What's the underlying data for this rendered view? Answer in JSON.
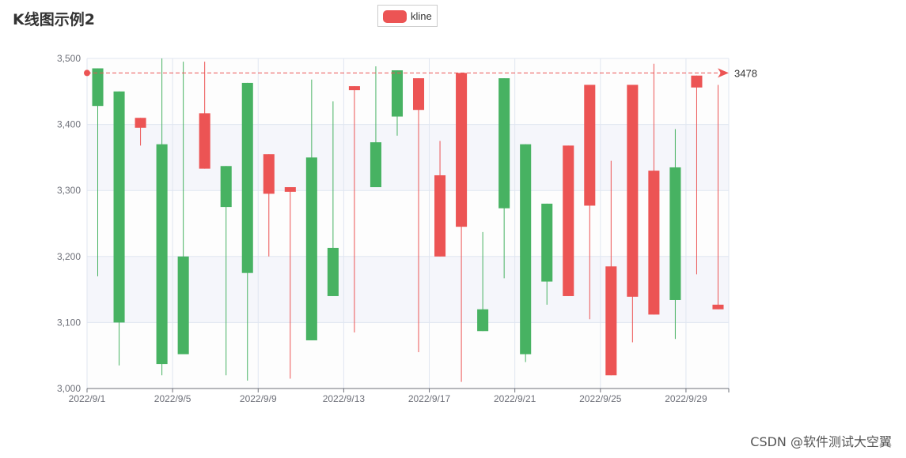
{
  "chart_data": {
    "type": "candlestick",
    "title": "K线图示例2",
    "legend": [
      "kline"
    ],
    "x": [
      "2022/9/1",
      "2022/9/2",
      "2022/9/3",
      "2022/9/4",
      "2022/9/5",
      "2022/9/6",
      "2022/9/7",
      "2022/9/8",
      "2022/9/9",
      "2022/9/10",
      "2022/9/11",
      "2022/9/12",
      "2022/9/13",
      "2022/9/14",
      "2022/9/15",
      "2022/9/16",
      "2022/9/17",
      "2022/9/18",
      "2022/9/19",
      "2022/9/20",
      "2022/9/21",
      "2022/9/22",
      "2022/9/23",
      "2022/9/24",
      "2022/9/25",
      "2022/9/26",
      "2022/9/27",
      "2022/9/28",
      "2022/9/29",
      "2022/9/30"
    ],
    "x_tick_labels": [
      "2022/9/1",
      "2022/9/5",
      "2022/9/9",
      "2022/9/13",
      "2022/9/17",
      "2022/9/21",
      "2022/9/25",
      "2022/9/29"
    ],
    "series": [
      {
        "name": "kline",
        "ohlc": [
          [
            3485,
            3428,
            3170,
            3485
          ],
          [
            3450,
            3100,
            3035,
            3450
          ],
          [
            3395,
            3410,
            3368,
            3410
          ],
          [
            3370,
            3037,
            3020,
            3500
          ],
          [
            3200,
            3052,
            3052,
            3495
          ],
          [
            3333,
            3417,
            3333,
            3495
          ],
          [
            3337,
            3275,
            3020,
            3337
          ],
          [
            3463,
            3175,
            3012,
            3463
          ],
          [
            3295,
            3355,
            3200,
            3355
          ],
          [
            3298,
            3305,
            3015,
            3305
          ],
          [
            3350,
            3073,
            3073,
            3468
          ],
          [
            3213,
            3140,
            3140,
            3435
          ],
          [
            3452,
            3458,
            3085,
            3458
          ],
          [
            3373,
            3305,
            3305,
            3488
          ],
          [
            3482,
            3412,
            3383,
            3482
          ],
          [
            3422,
            3470,
            3055,
            3470
          ],
          [
            3200,
            3323,
            3200,
            3375
          ],
          [
            3245,
            3478,
            3010,
            3478
          ],
          [
            3120,
            3087,
            3087,
            3237
          ],
          [
            3470,
            3273,
            3167,
            3470
          ],
          [
            3370,
            3052,
            3040,
            3370
          ],
          [
            3280,
            3162,
            3127,
            3280
          ],
          [
            3140,
            3368,
            3140,
            3368
          ],
          [
            3277,
            3460,
            3105,
            3460
          ],
          [
            3020,
            3185,
            3020,
            3345
          ],
          [
            3139,
            3460,
            3070,
            3460
          ],
          [
            3112,
            3330,
            3112,
            3492
          ],
          [
            3335,
            3134,
            3075,
            3393
          ],
          [
            3456,
            3474,
            3173,
            3474
          ],
          [
            3120,
            3127,
            3120,
            3460
          ]
        ]
      }
    ],
    "markline": {
      "type": "max",
      "value": 3478,
      "label": "3478"
    },
    "ylim": [
      3000,
      3500
    ],
    "y_ticks": [
      3000,
      3100,
      3200,
      3300,
      3400,
      3500
    ],
    "y_tick_labels": [
      "3,000",
      "3,100",
      "3,200",
      "3,300",
      "3,400",
      "3,500"
    ],
    "split_area": true,
    "colors": {
      "up": "#ec5454",
      "down": "#47b262",
      "axis": "#6e7079",
      "grid": "#e0e6f1",
      "band": "#f5f6fb",
      "text": "#6e7079"
    }
  },
  "watermark": "CSDN @软件测试大空翼"
}
